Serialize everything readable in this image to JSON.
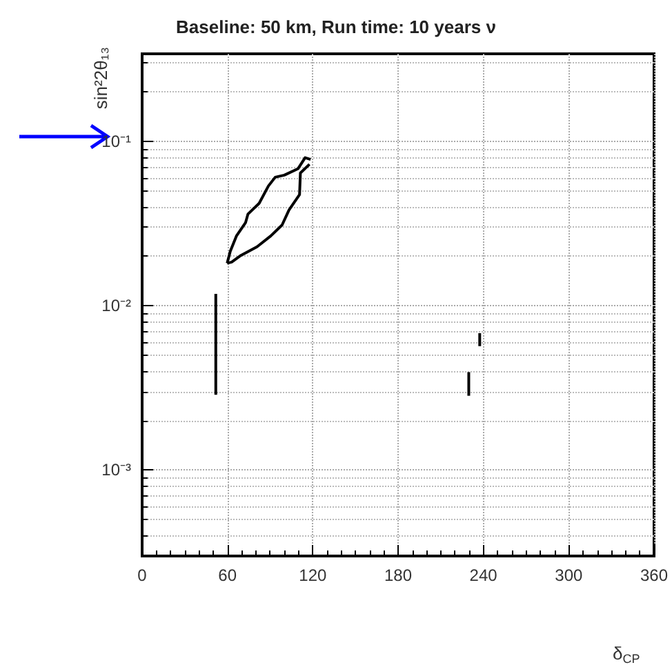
{
  "chart_data": {
    "type": "line",
    "title": "Baseline: 50 km, Run time: 10 years ν",
    "xlabel": "δ$_{CP}$",
    "ylabel": "sin²2θ₁₃",
    "xlim": [
      0,
      360
    ],
    "xticks": [
      0,
      60,
      120,
      180,
      240,
      300,
      360
    ],
    "ylim": [
      0.0003,
      0.34
    ],
    "yticks": [
      {
        "value": 0.001,
        "label": "10⁻³"
      },
      {
        "value": 0.01,
        "label": "10⁻²"
      },
      {
        "value": 0.1,
        "label": "10⁻¹"
      }
    ],
    "log": "y",
    "grid": true,
    "marker": "none",
    "line_style": "solid",
    "series": [
      {
        "color": "#000000",
        "x": [
          59.8,
          62,
          66.3,
          72.7,
          74.4,
          82.3,
          88.8,
          93.6,
          100,
          109.7,
          114.6,
          118.5
        ],
        "values": [
          0.0181,
          0.0214,
          0.0265,
          0.0319,
          0.036,
          0.0419,
          0.0534,
          0.0604,
          0.0622,
          0.0681,
          0.0794,
          0.0775
        ]
      },
      {
        "color": "#000000",
        "x": [
          59.8,
          63,
          69.5,
          80.8,
          90.4,
          98.4,
          103.3,
          110.7,
          111.3,
          117.7
        ],
        "values": [
          0.0181,
          0.0184,
          0.0202,
          0.0228,
          0.0265,
          0.0309,
          0.0382,
          0.0473,
          0.0641,
          0.0724
        ]
      },
      {
        "color": "#000000",
        "x": [
          51.8,
          51.8
        ],
        "values": [
          0.0118,
          0.00287
        ]
      },
      {
        "color": "#000000",
        "x": [
          237.4,
          237.4
        ],
        "values": [
          0.0068,
          0.00567
        ]
      },
      {
        "color": "#000000",
        "x": [
          229.7,
          229.7
        ],
        "values": [
          0.00394,
          0.00283
        ]
      }
    ]
  }
}
